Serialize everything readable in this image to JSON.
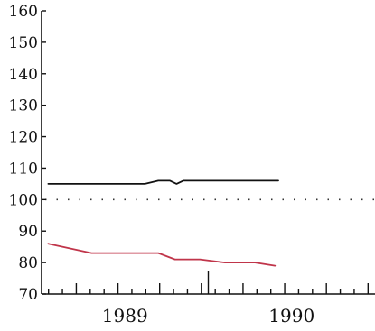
{
  "chart_data": {
    "type": "line",
    "title": "",
    "xlabel": "",
    "ylabel": "",
    "ylim": [
      70,
      160
    ],
    "yticks": [
      "70",
      "80",
      "90",
      "100",
      "110",
      "120",
      "130",
      "140",
      "150",
      "160"
    ],
    "xlim": [
      1988.5,
      1990.5
    ],
    "xticks": [
      {
        "label": "1989",
        "value": 1989.0
      },
      {
        "label": "1990",
        "value": 1990.0
      }
    ],
    "minor_ticks_per_year": 12,
    "reference_line": {
      "y": 100,
      "style": "dotted"
    },
    "grid": false,
    "series": [
      {
        "color": "#111111",
        "x": [
          1988.54,
          1989.12,
          1989.2,
          1989.27,
          1989.31,
          1989.35,
          1989.44,
          1989.92
        ],
        "y": [
          105,
          105,
          106,
          106,
          105,
          106,
          106,
          106
        ]
      },
      {
        "color": "#c0354a",
        "x": [
          1988.54,
          1988.8,
          1989.2,
          1989.3,
          1989.45,
          1989.6,
          1989.78,
          1989.9
        ],
        "y": [
          86,
          83,
          83,
          81,
          81,
          80,
          80,
          79
        ]
      }
    ]
  }
}
